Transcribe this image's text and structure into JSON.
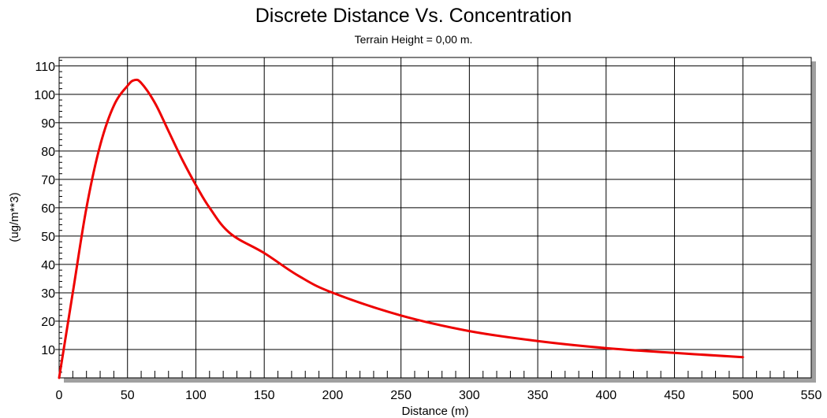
{
  "chart_data": {
    "type": "line",
    "title": "Discrete Distance Vs. Concentration",
    "subtitle": "Terrain Height = 0,00 m.",
    "xlabel": "Distance (m)",
    "ylabel": "(ug/m**3)",
    "xlim": [
      0,
      550
    ],
    "ylim": [
      0,
      113
    ],
    "x_ticks": [
      0,
      50,
      100,
      150,
      200,
      250,
      300,
      350,
      400,
      450,
      500,
      550
    ],
    "y_ticks": [
      10,
      20,
      30,
      40,
      50,
      60,
      70,
      80,
      90,
      100,
      110
    ],
    "grid": true,
    "series": [
      {
        "color": "#ee0000",
        "x": [
          0,
          10,
          20,
          30,
          40,
          50,
          55,
          60,
          70,
          80,
          90,
          100,
          110,
          125,
          150,
          175,
          200,
          250,
          300,
          350,
          400,
          450,
          500
        ],
        "y": [
          0,
          30,
          60,
          82,
          96,
          103,
          105,
          104,
          97,
          87,
          77,
          68,
          60,
          51,
          44,
          36,
          30,
          22,
          16.5,
          13,
          10.5,
          8.8,
          7.3
        ]
      }
    ]
  }
}
